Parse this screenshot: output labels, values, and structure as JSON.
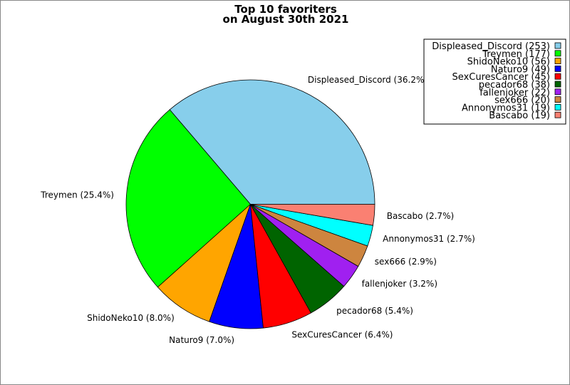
{
  "chart_data": {
    "type": "pie",
    "title_lines": [
      "Top 10 favoriters",
      "on August 30th 2021"
    ],
    "start_angle_deg": 0,
    "direction": "counterclockwise",
    "legend_position": "top-right",
    "slices": [
      {
        "name": "Displeased_Discord",
        "value": 253,
        "label": "Displeased_Discord (36.2%)",
        "legend": "Displeased_Discord (253)",
        "color": "#87CEEB"
      },
      {
        "name": "Treymen",
        "value": 177,
        "label": "Treymen (25.4%)",
        "legend": "Treymen (177)",
        "color": "#00FF00"
      },
      {
        "name": "ShidoNeko10",
        "value": 56,
        "label": "ShidoNeko10 (8.0%)",
        "legend": "ShidoNeko10 (56)",
        "color": "#FFA500"
      },
      {
        "name": "Naturo9",
        "value": 49,
        "label": "Naturo9 (7.0%)",
        "legend": "Naturo9 (49)",
        "color": "#0000FF"
      },
      {
        "name": "SexCuresCancer",
        "value": 45,
        "label": "SexCuresCancer (6.4%)",
        "legend": "SexCuresCancer (45)",
        "color": "#FF0000"
      },
      {
        "name": "pecador68",
        "value": 38,
        "label": "pecador68 (5.4%)",
        "legend": "pecador68 (38)",
        "color": "#006400"
      },
      {
        "name": "fallenjoker",
        "value": 22,
        "label": "fallenjoker (3.2%)",
        "legend": "fallenjoker (22)",
        "color": "#A020F0"
      },
      {
        "name": "sex666",
        "value": 20,
        "label": "sex666 (2.9%)",
        "legend": "sex666 (20)",
        "color": "#CD853F"
      },
      {
        "name": "Annonymos31",
        "value": 19,
        "label": "Annonymos31 (2.7%)",
        "legend": "Annonymos31 (19)",
        "color": "#00FFFF"
      },
      {
        "name": "Bascabo",
        "value": 19,
        "label": "Bascabo (2.7%)",
        "legend": "Bascabo (19)",
        "color": "#FA8072"
      }
    ]
  }
}
